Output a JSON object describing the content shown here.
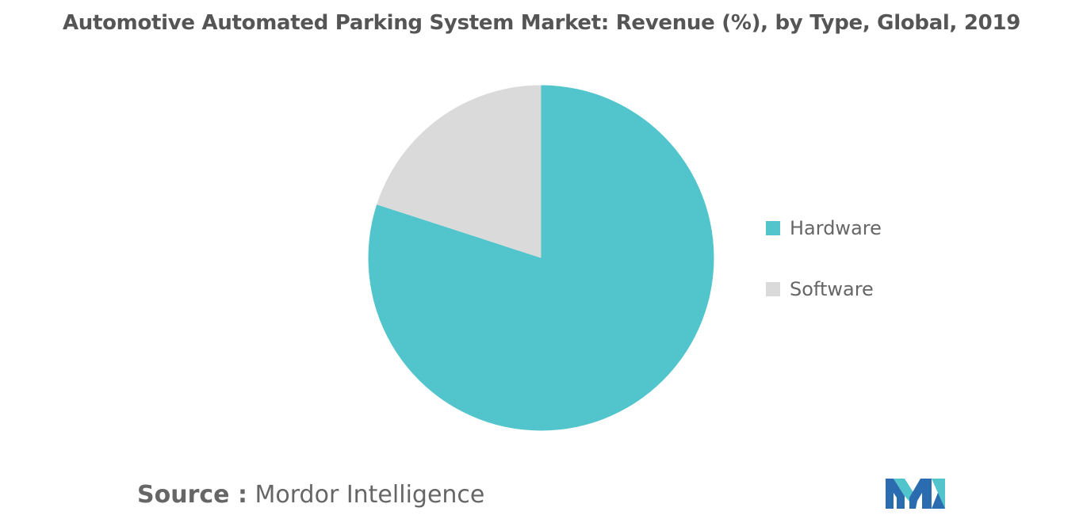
{
  "chart_data": {
    "type": "pie",
    "title": "Automotive Automated Parking System Market: Revenue (%), by Type, Global, 2019",
    "categories": [
      "Hardware",
      "Software"
    ],
    "values": [
      80,
      20
    ],
    "colors": [
      "#52C4CB",
      "#DADADA"
    ],
    "start_angle_deg": 0,
    "direction": "clockwise",
    "legend_position": "right"
  },
  "source": {
    "label": "Source :",
    "text": "Mordor Intelligence"
  },
  "logo": {
    "icon": "mordor-intelligence-logo",
    "colors": [
      "#2B6CB0",
      "#52C4CB"
    ]
  }
}
